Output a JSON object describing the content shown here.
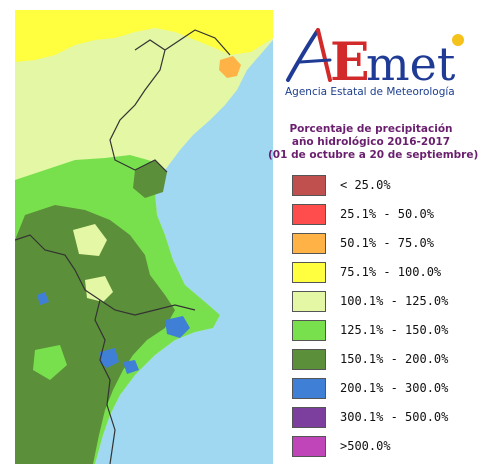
{
  "logo": {
    "wordmark": "AEmet",
    "agency_name": "Agencia Estatal de Meteorología",
    "colors": {
      "a_blue": "#1f3b95",
      "a_red": "#d22a2a",
      "met": "#1f3b95",
      "dot_yellow": "#f4c21a"
    }
  },
  "legend": {
    "title_lines": [
      "Porcentaje de precipitación",
      "año hidrológico 2016-2017",
      "(01 de octubre a 20 de septiembre)"
    ],
    "items": [
      {
        "label": "< 25.0%",
        "color": "#c0504d"
      },
      {
        "label": "25.1% - 50.0%",
        "color": "#ff4d4d"
      },
      {
        "label": "50.1% - 75.0%",
        "color": "#ffb347"
      },
      {
        "label": "75.1% - 100.0%",
        "color": "#ffff3f"
      },
      {
        "label": "100.1% - 125.0%",
        "color": "#e3f7a5"
      },
      {
        "label": "125.1% - 150.0%",
        "color": "#79e04d"
      },
      {
        "label": "150.1% - 200.0%",
        "color": "#5b8f3a"
      },
      {
        "label": "200.1% - 300.0%",
        "color": "#3f7fd6"
      },
      {
        "label": "300.1% - 500.0%",
        "color": "#7d3f9e"
      },
      {
        "label": ">500.0%",
        "color": "#c045b8"
      }
    ]
  },
  "map": {
    "colors": {
      "sea": "#9fd8f0",
      "yellow": "#ffff3f",
      "orange": "#ffb347",
      "pale": "#e3f7a5",
      "light_green": "#79e04d",
      "dark_green": "#5b8f3a",
      "blue": "#3f7fd6",
      "border": "#333333"
    }
  }
}
